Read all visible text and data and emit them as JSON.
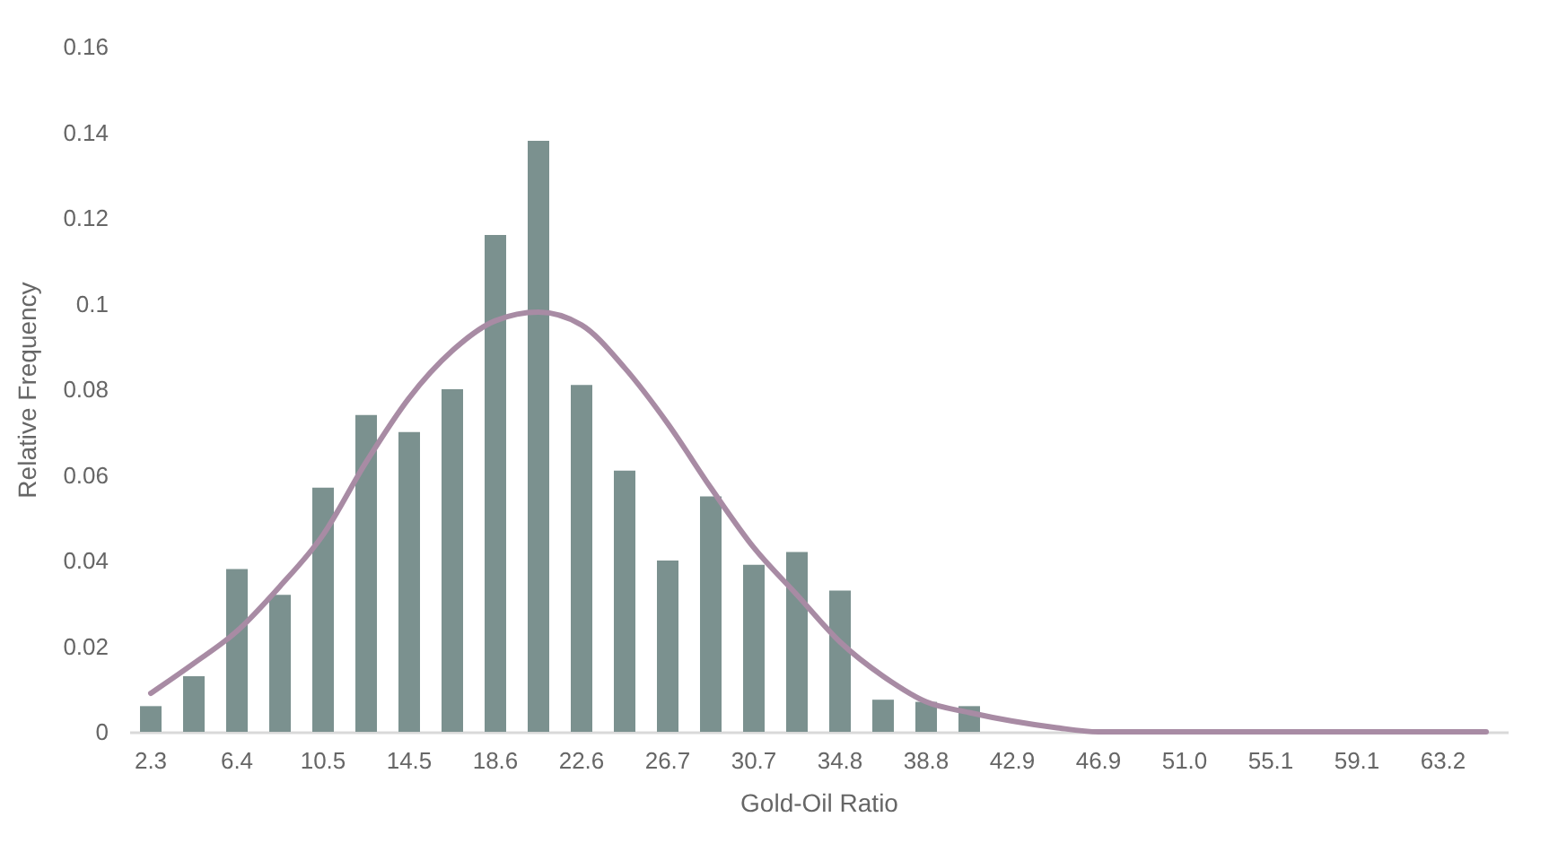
{
  "chart_data": {
    "type": "bar",
    "xlabel": "Gold-Oil Ratio",
    "ylabel": "Relative Frequency",
    "categories": [
      "2.3",
      null,
      "6.4",
      null,
      "10.5",
      null,
      "14.5",
      null,
      "18.6",
      null,
      "22.6",
      null,
      "26.7",
      null,
      "30.7",
      null,
      "34.8",
      null,
      "38.8",
      null,
      "42.9",
      null,
      "46.9",
      null,
      "51.0",
      null,
      "55.1",
      null,
      "59.1",
      null,
      "63.2",
      null
    ],
    "series": [
      {
        "color": "#7b918f",
        "values": [
          0.006,
          0.013,
          0.038,
          0.032,
          0.057,
          0.074,
          0.07,
          0.08,
          0.116,
          0.138,
          0.081,
          0.061,
          0.04,
          0.055,
          0.039,
          0.042,
          0.033,
          0.0075,
          0.007,
          0.006,
          0,
          0,
          0,
          0,
          0,
          0,
          0,
          0,
          0,
          0,
          0,
          0
        ]
      },
      {
        "type": "line",
        "color": "#a88ba4",
        "values": [
          0.009,
          0.016,
          0.0235,
          0.034,
          0.046,
          0.063,
          0.078,
          0.089,
          0.096,
          0.098,
          0.095,
          0.085,
          0.072,
          0.057,
          0.043,
          0.032,
          0.021,
          0.013,
          0.007,
          0.0045,
          0.0025,
          0.001,
          0,
          0,
          0,
          0,
          0,
          0,
          0,
          0,
          0,
          0
        ]
      }
    ],
    "ylim": [
      0,
      0.16
    ],
    "yticks": [
      0,
      0.02,
      0.04,
      0.06,
      0.08,
      0.1,
      0.12,
      0.14,
      0.16
    ],
    "grid": false
  }
}
